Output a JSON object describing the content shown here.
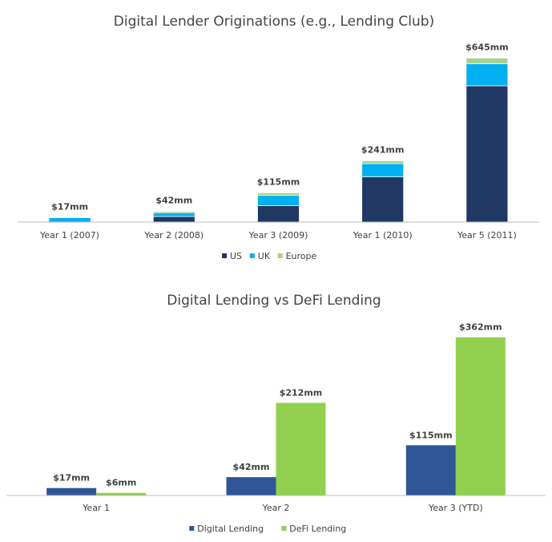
{
  "chart_data": [
    {
      "type": "bar",
      "stacked": true,
      "title": "Digital Lender Originations  (e.g., Lending Club)",
      "categories": [
        "Year 1 (2007)",
        "Year 2 (2008)",
        "Year 3 (2009)",
        "Year 1 (2010)",
        "Year 5 (2011)"
      ],
      "series": [
        {
          "name": "US",
          "values": [
            0,
            22,
            65,
            178,
            536
          ],
          "color": "#1f3864"
        },
        {
          "name": "UK",
          "values": [
            17,
            15,
            40,
            52,
            87
          ],
          "color": "#00b0f0"
        },
        {
          "name": "Europe",
          "values": [
            0,
            5,
            10,
            11,
            22
          ],
          "color": "#a9d18e"
        }
      ],
      "total_labels": [
        "$17mm",
        "$42mm",
        "$115mm",
        "$241mm",
        "$645mm"
      ],
      "ylim": [
        0,
        700
      ],
      "grid": false,
      "legend": "bottom-center"
    },
    {
      "type": "bar",
      "title": "Digital Lending vs DeFi Lending",
      "categories": [
        "Year 1",
        "Year 2",
        "Year 3 (YTD)"
      ],
      "series": [
        {
          "name": "Digital Lending",
          "values": [
            17,
            42,
            115
          ],
          "labels": [
            "$17mm",
            "$42mm",
            "$115mm"
          ],
          "color": "#2f5597"
        },
        {
          "name": "DeFi Lending",
          "values": [
            6,
            212,
            362
          ],
          "labels": [
            "$6mm",
            "$212mm",
            "$362mm"
          ],
          "color": "#92d050"
        }
      ],
      "ylim": [
        0,
        400
      ],
      "grid": false,
      "legend": "bottom-center"
    }
  ]
}
